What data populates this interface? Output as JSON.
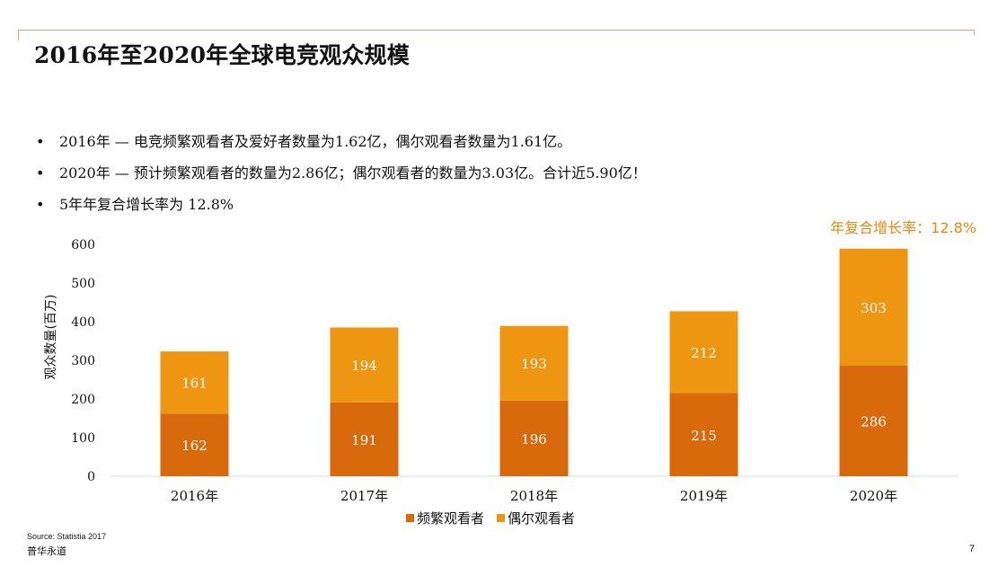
{
  "title": "2016年至2020年全球电竞观众规模",
  "bullets": [
    "2016年 — 电竞频繁观看者及爱好者数量为1.62亿，偶尔观看者数量为1.61亿。",
    "2020年 — 预计频繁观看者的数量为2.86亿；偶尔观看者的数量为3.03亿。合计近5.90亿！",
    "5年年复合增长率为 12.8%"
  ],
  "bullet_glyph": "•",
  "cagr_label": "年复合增长率：12.8%",
  "source": "Source: Statistia 2017",
  "brand": "普华永道",
  "page_number": "7",
  "colors": {
    "frequent": "#d96a0c",
    "occasional": "#ee9512",
    "accent": "#e8870e",
    "rule": "#e3a36a"
  },
  "chart_data": {
    "type": "bar",
    "stacked": true,
    "categories": [
      "2016年",
      "2017年",
      "2018年",
      "2019年",
      "2020年"
    ],
    "series": [
      {
        "name": "频繁观看者",
        "values": [
          162,
          191,
          196,
          215,
          286
        ]
      },
      {
        "name": "偶尔观看者",
        "values": [
          161,
          194,
          193,
          212,
          303
        ]
      }
    ],
    "ylabel": "观众数量(百万)",
    "ylim": [
      0,
      600
    ],
    "yticks": [
      0,
      100,
      200,
      300,
      400,
      500,
      600
    ],
    "grid": false,
    "legend": "bottom"
  }
}
